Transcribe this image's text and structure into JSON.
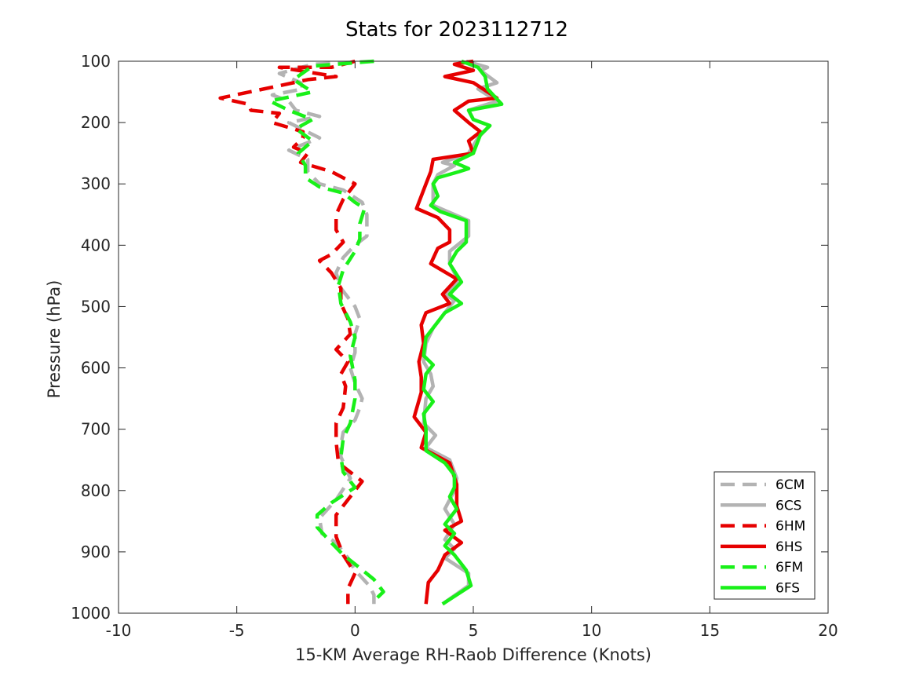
{
  "chart_data": {
    "type": "line",
    "title": "Stats for 2023112712",
    "xlabel": "15-KM Average RH-Raob Difference (Knots)",
    "ylabel": "Pressure (hPa)",
    "xlim": [
      -10,
      20
    ],
    "ylim": [
      100,
      1000
    ],
    "y_inverted": true,
    "xticks": [
      -10,
      -5,
      0,
      5,
      10,
      15,
      20
    ],
    "yticks": [
      100,
      200,
      300,
      400,
      500,
      600,
      700,
      800,
      900,
      1000
    ],
    "grid": false,
    "legend_position": "bottom-right",
    "series": [
      {
        "name": "6CM",
        "color": "#b3b3b3",
        "dashed": true,
        "points": [
          [
            0.8,
            100
          ],
          [
            -1.8,
            105
          ],
          [
            -3.2,
            120
          ],
          [
            -2.3,
            135
          ],
          [
            -2.2,
            145
          ],
          [
            -3.5,
            155
          ],
          [
            -2.8,
            165
          ],
          [
            -2.5,
            180
          ],
          [
            -1.5,
            190
          ],
          [
            -2.8,
            200
          ],
          [
            -1.5,
            225
          ],
          [
            -2.8,
            245
          ],
          [
            -2.0,
            260
          ],
          [
            -2.0,
            280
          ],
          [
            -1.5,
            300
          ],
          [
            -0.5,
            310
          ],
          [
            0.3,
            330
          ],
          [
            0.5,
            350
          ],
          [
            0.5,
            370
          ],
          [
            0.5,
            385
          ],
          [
            0.0,
            400
          ],
          [
            -0.5,
            420
          ],
          [
            -0.8,
            445
          ],
          [
            -0.6,
            470
          ],
          [
            -0.2,
            490
          ],
          [
            0.0,
            500
          ],
          [
            0.2,
            520
          ],
          [
            0.0,
            545
          ],
          [
            0.0,
            575
          ],
          [
            -0.2,
            600
          ],
          [
            0.0,
            625
          ],
          [
            0.3,
            650
          ],
          [
            0.2,
            665
          ],
          [
            0.0,
            685
          ],
          [
            -0.5,
            705
          ],
          [
            -0.6,
            725
          ],
          [
            -0.6,
            745
          ],
          [
            -0.2,
            780
          ],
          [
            -0.8,
            815
          ],
          [
            -1.5,
            845
          ],
          [
            -1.4,
            870
          ],
          [
            -0.8,
            885
          ],
          [
            -0.3,
            910
          ],
          [
            0.0,
            930
          ],
          [
            0.6,
            955
          ],
          [
            0.8,
            970
          ],
          [
            0.8,
            985
          ]
        ]
      },
      {
        "name": "6CS",
        "color": "#b3b3b3",
        "dashed": false,
        "points": [
          [
            4.7,
            100
          ],
          [
            5.6,
            110
          ],
          [
            5.3,
            115
          ],
          [
            6.0,
            135
          ],
          [
            5.2,
            145
          ],
          [
            6.0,
            165
          ],
          [
            4.8,
            180
          ],
          [
            5.0,
            195
          ],
          [
            5.7,
            205
          ],
          [
            5.2,
            225
          ],
          [
            4.8,
            250
          ],
          [
            3.7,
            265
          ],
          [
            4.2,
            270
          ],
          [
            3.5,
            285
          ],
          [
            3.3,
            300
          ],
          [
            3.3,
            335
          ],
          [
            4.8,
            360
          ],
          [
            4.8,
            385
          ],
          [
            4.0,
            410
          ],
          [
            4.0,
            430
          ],
          [
            4.4,
            460
          ],
          [
            3.8,
            480
          ],
          [
            4.2,
            490
          ],
          [
            3.8,
            510
          ],
          [
            3.3,
            535
          ],
          [
            3.0,
            560
          ],
          [
            2.9,
            590
          ],
          [
            3.2,
            610
          ],
          [
            3.3,
            630
          ],
          [
            3.0,
            650
          ],
          [
            2.9,
            690
          ],
          [
            3.4,
            710
          ],
          [
            3.0,
            730
          ],
          [
            4.0,
            750
          ],
          [
            4.3,
            780
          ],
          [
            4.2,
            800
          ],
          [
            3.8,
            830
          ],
          [
            4.2,
            855
          ],
          [
            3.8,
            880
          ],
          [
            4.2,
            895
          ],
          [
            3.8,
            910
          ],
          [
            4.8,
            935
          ],
          [
            4.8,
            955
          ],
          [
            3.7,
            985
          ]
        ]
      },
      {
        "name": "6HM",
        "color": "#e60000",
        "dashed": true,
        "points": [
          [
            0.0,
            100
          ],
          [
            -1.0,
            110
          ],
          [
            -3.2,
            110
          ],
          [
            -0.8,
            125
          ],
          [
            -2.0,
            130
          ],
          [
            -3.2,
            140
          ],
          [
            -5.7,
            160
          ],
          [
            -4.5,
            170
          ],
          [
            -4.4,
            180
          ],
          [
            -3.2,
            185
          ],
          [
            -3.5,
            200
          ],
          [
            -2.2,
            215
          ],
          [
            -2.2,
            225
          ],
          [
            -2.6,
            240
          ],
          [
            -2.0,
            250
          ],
          [
            -2.3,
            265
          ],
          [
            -1.0,
            280
          ],
          [
            0.0,
            300
          ],
          [
            -0.5,
            325
          ],
          [
            -0.8,
            350
          ],
          [
            -0.8,
            375
          ],
          [
            -0.5,
            395
          ],
          [
            -1.0,
            415
          ],
          [
            -1.5,
            425
          ],
          [
            -1.0,
            445
          ],
          [
            -0.6,
            470
          ],
          [
            -0.6,
            495
          ],
          [
            -0.3,
            520
          ],
          [
            -0.2,
            545
          ],
          [
            -0.8,
            570
          ],
          [
            -0.3,
            590
          ],
          [
            -0.6,
            610
          ],
          [
            -0.4,
            630
          ],
          [
            -0.5,
            665
          ],
          [
            -0.8,
            690
          ],
          [
            -0.8,
            720
          ],
          [
            -0.7,
            755
          ],
          [
            0.3,
            785
          ],
          [
            -0.2,
            810
          ],
          [
            -0.8,
            840
          ],
          [
            -0.8,
            875
          ],
          [
            -0.5,
            905
          ],
          [
            0.0,
            935
          ],
          [
            -0.3,
            960
          ],
          [
            -0.3,
            985
          ]
        ]
      },
      {
        "name": "6HS",
        "color": "#e60000",
        "dashed": false,
        "points": [
          [
            5.0,
            100
          ],
          [
            4.2,
            105
          ],
          [
            5.0,
            115
          ],
          [
            3.8,
            125
          ],
          [
            5.0,
            135
          ],
          [
            6.0,
            160
          ],
          [
            4.8,
            165
          ],
          [
            4.2,
            180
          ],
          [
            4.8,
            200
          ],
          [
            5.3,
            215
          ],
          [
            4.8,
            230
          ],
          [
            5.0,
            250
          ],
          [
            3.3,
            260
          ],
          [
            3.2,
            280
          ],
          [
            3.0,
            300
          ],
          [
            2.8,
            320
          ],
          [
            2.6,
            340
          ],
          [
            3.5,
            355
          ],
          [
            4.0,
            375
          ],
          [
            4.0,
            395
          ],
          [
            3.5,
            405
          ],
          [
            3.2,
            430
          ],
          [
            4.3,
            455
          ],
          [
            3.7,
            480
          ],
          [
            4.0,
            495
          ],
          [
            3.0,
            510
          ],
          [
            2.8,
            530
          ],
          [
            2.9,
            560
          ],
          [
            2.7,
            590
          ],
          [
            2.8,
            615
          ],
          [
            2.8,
            640
          ],
          [
            2.5,
            680
          ],
          [
            3.0,
            705
          ],
          [
            2.8,
            730
          ],
          [
            4.0,
            755
          ],
          [
            4.3,
            790
          ],
          [
            4.3,
            825
          ],
          [
            4.5,
            850
          ],
          [
            3.8,
            865
          ],
          [
            4.5,
            885
          ],
          [
            3.8,
            905
          ],
          [
            3.5,
            930
          ],
          [
            3.1,
            950
          ],
          [
            3.0,
            985
          ]
        ]
      },
      {
        "name": "6FM",
        "color": "#19f019",
        "dashed": true,
        "points": [
          [
            0.8,
            100
          ],
          [
            -1.8,
            108
          ],
          [
            -2.6,
            130
          ],
          [
            -1.8,
            150
          ],
          [
            -3.6,
            165
          ],
          [
            -2.8,
            180
          ],
          [
            -1.8,
            195
          ],
          [
            -2.5,
            210
          ],
          [
            -1.8,
            230
          ],
          [
            -2.4,
            250
          ],
          [
            -2.1,
            270
          ],
          [
            -2.1,
            290
          ],
          [
            -1.5,
            305
          ],
          [
            -0.5,
            315
          ],
          [
            0.0,
            330
          ],
          [
            0.4,
            340
          ],
          [
            0.2,
            365
          ],
          [
            0.2,
            390
          ],
          [
            0.0,
            410
          ],
          [
            -0.5,
            440
          ],
          [
            -0.7,
            465
          ],
          [
            -0.6,
            495
          ],
          [
            -0.2,
            525
          ],
          [
            0.0,
            550
          ],
          [
            -0.2,
            580
          ],
          [
            0.0,
            620
          ],
          [
            0.0,
            650
          ],
          [
            -0.2,
            690
          ],
          [
            -0.5,
            715
          ],
          [
            -0.6,
            745
          ],
          [
            -0.5,
            770
          ],
          [
            0.0,
            795
          ],
          [
            -1.0,
            820
          ],
          [
            -1.6,
            840
          ],
          [
            -1.6,
            860
          ],
          [
            -1.0,
            885
          ],
          [
            -0.5,
            905
          ],
          [
            0.0,
            920
          ],
          [
            0.8,
            945
          ],
          [
            1.2,
            965
          ],
          [
            0.8,
            980
          ]
        ]
      },
      {
        "name": "6FS",
        "color": "#19f019",
        "dashed": false,
        "points": [
          [
            4.5,
            100
          ],
          [
            5.2,
            110
          ],
          [
            5.5,
            125
          ],
          [
            5.6,
            145
          ],
          [
            6.2,
            170
          ],
          [
            4.8,
            180
          ],
          [
            5.0,
            195
          ],
          [
            5.7,
            205
          ],
          [
            5.3,
            220
          ],
          [
            5.0,
            250
          ],
          [
            4.2,
            265
          ],
          [
            4.8,
            275
          ],
          [
            4.4,
            280
          ],
          [
            3.5,
            290
          ],
          [
            3.3,
            300
          ],
          [
            3.5,
            320
          ],
          [
            3.2,
            335
          ],
          [
            3.6,
            345
          ],
          [
            4.7,
            360
          ],
          [
            4.7,
            395
          ],
          [
            4.3,
            410
          ],
          [
            4.0,
            430
          ],
          [
            4.5,
            460
          ],
          [
            4.0,
            480
          ],
          [
            4.5,
            495
          ],
          [
            3.8,
            510
          ],
          [
            3.5,
            525
          ],
          [
            3.0,
            550
          ],
          [
            2.9,
            580
          ],
          [
            3.3,
            595
          ],
          [
            3.0,
            610
          ],
          [
            2.9,
            635
          ],
          [
            3.3,
            655
          ],
          [
            2.9,
            675
          ],
          [
            3.0,
            700
          ],
          [
            3.0,
            720
          ],
          [
            3.0,
            735
          ],
          [
            3.8,
            755
          ],
          [
            4.2,
            775
          ],
          [
            4.2,
            795
          ],
          [
            4.0,
            810
          ],
          [
            4.3,
            830
          ],
          [
            3.8,
            855
          ],
          [
            4.2,
            870
          ],
          [
            3.8,
            890
          ],
          [
            4.2,
            905
          ],
          [
            4.7,
            930
          ],
          [
            4.9,
            955
          ],
          [
            3.7,
            985
          ]
        ]
      }
    ]
  }
}
